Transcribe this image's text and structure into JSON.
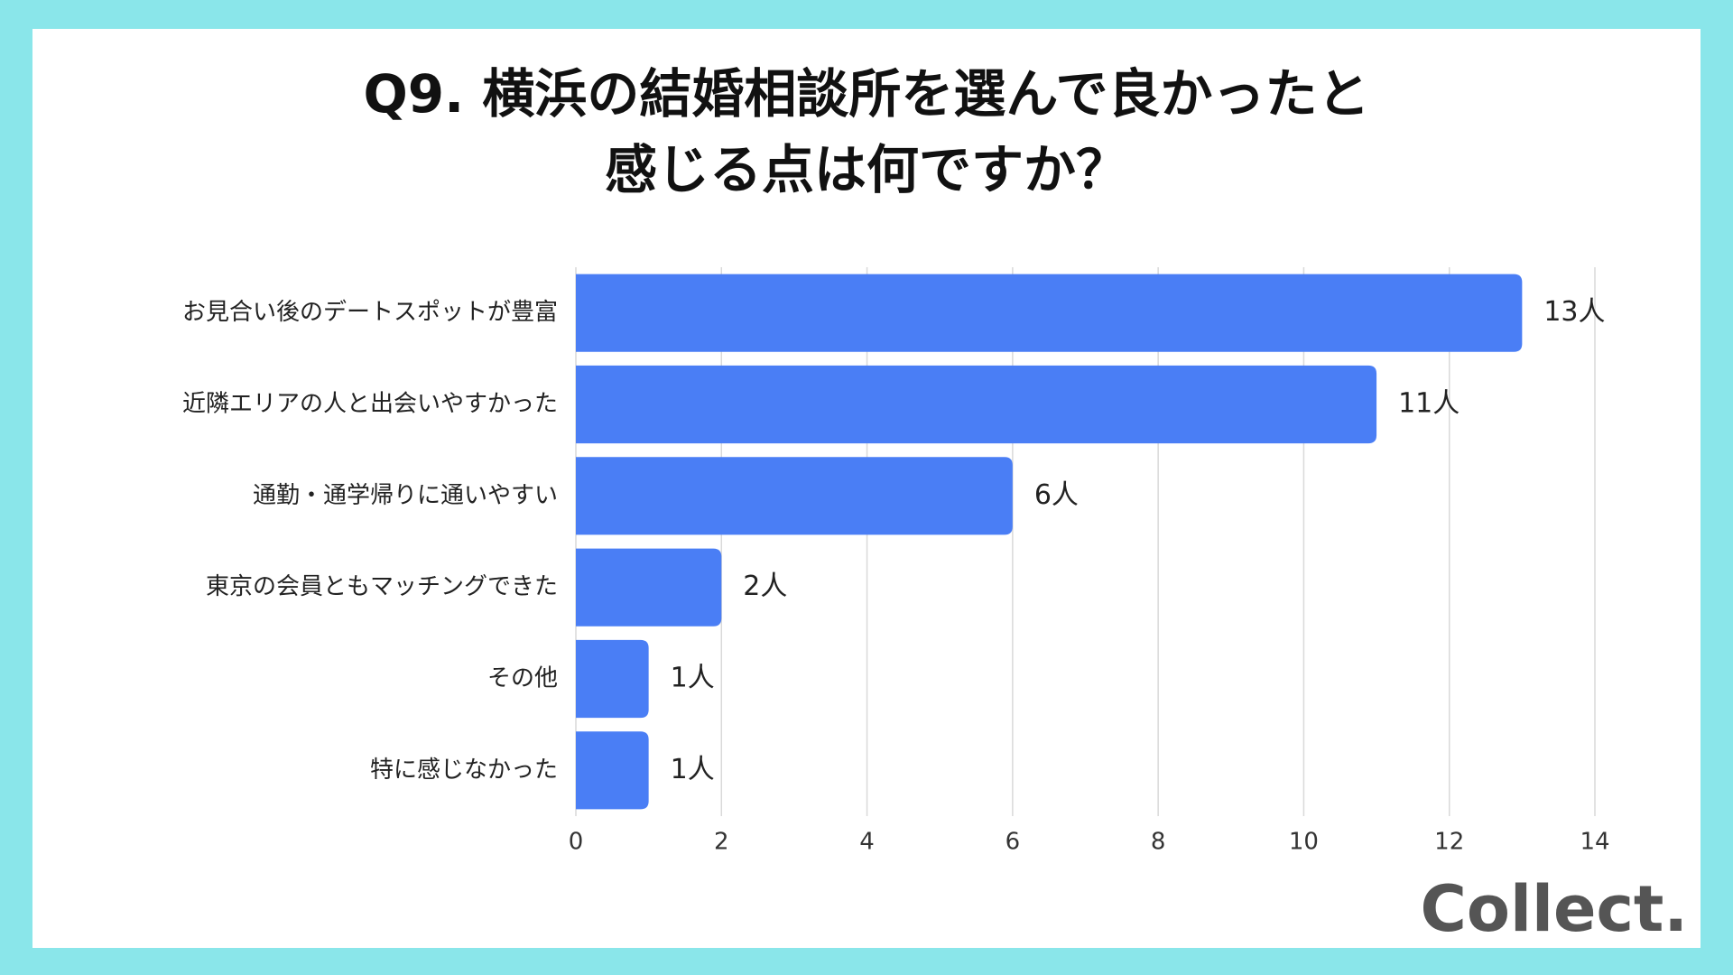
{
  "chart_data": {
    "type": "bar",
    "orientation": "horizontal",
    "title": [
      "Q9. 横浜の結婚相談所を選んで良かったと",
      "感じる点は何ですか？"
    ],
    "categories": [
      "お見合い後のデートスポットが豊富",
      "近隣エリアの人と出会いやすかった",
      "通勤・通学帰りに通いやすい",
      "東京の会員ともマッチングできた",
      "その他",
      "特に感じなかった"
    ],
    "values": [
      13,
      11,
      6,
      2,
      1,
      1
    ],
    "value_labels": [
      "13人",
      "11人",
      "6人",
      "2人",
      "1人",
      "1人"
    ],
    "color": "#4a7ef5",
    "xlim": [
      0,
      14
    ],
    "xticks": [
      0,
      2,
      4,
      6,
      8,
      10,
      12,
      14
    ],
    "grid": true
  },
  "logo": "Collect."
}
